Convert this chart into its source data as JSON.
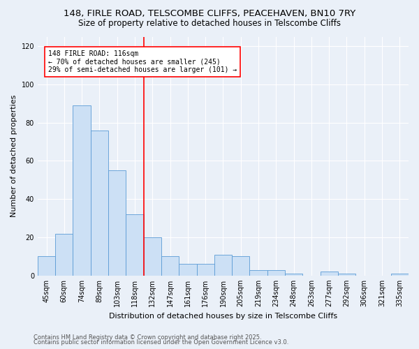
{
  "title_line1": "148, FIRLE ROAD, TELSCOMBE CLIFFS, PEACEHAVEN, BN10 7RY",
  "title_line2": "Size of property relative to detached houses in Telscombe Cliffs",
  "xlabel": "Distribution of detached houses by size in Telscombe Cliffs",
  "ylabel": "Number of detached properties",
  "categories": [
    "45sqm",
    "60sqm",
    "74sqm",
    "89sqm",
    "103sqm",
    "118sqm",
    "132sqm",
    "147sqm",
    "161sqm",
    "176sqm",
    "190sqm",
    "205sqm",
    "219sqm",
    "234sqm",
    "248sqm",
    "263sqm",
    "277sqm",
    "292sqm",
    "306sqm",
    "321sqm",
    "335sqm"
  ],
  "values": [
    10,
    22,
    89,
    76,
    55,
    32,
    20,
    10,
    6,
    6,
    11,
    10,
    3,
    3,
    1,
    0,
    2,
    1,
    0,
    0,
    1
  ],
  "bar_color": "#cce0f5",
  "bar_edge_color": "#5b9bd5",
  "vline_x": 5.5,
  "vline_color": "red",
  "annotation_text": "148 FIRLE ROAD: 116sqm\n← 70% of detached houses are smaller (245)\n29% of semi-detached houses are larger (101) →",
  "annotation_box_color": "white",
  "annotation_box_edge": "red",
  "ylim": [
    0,
    125
  ],
  "yticks": [
    0,
    20,
    40,
    60,
    80,
    100,
    120
  ],
  "bg_color": "#eaf0f8",
  "footer_line1": "Contains HM Land Registry data © Crown copyright and database right 2025.",
  "footer_line2": "Contains public sector information licensed under the Open Government Licence v3.0.",
  "title_fontsize": 9.5,
  "subtitle_fontsize": 8.5,
  "tick_fontsize": 7,
  "ylabel_fontsize": 8,
  "xlabel_fontsize": 8,
  "footer_fontsize": 6
}
